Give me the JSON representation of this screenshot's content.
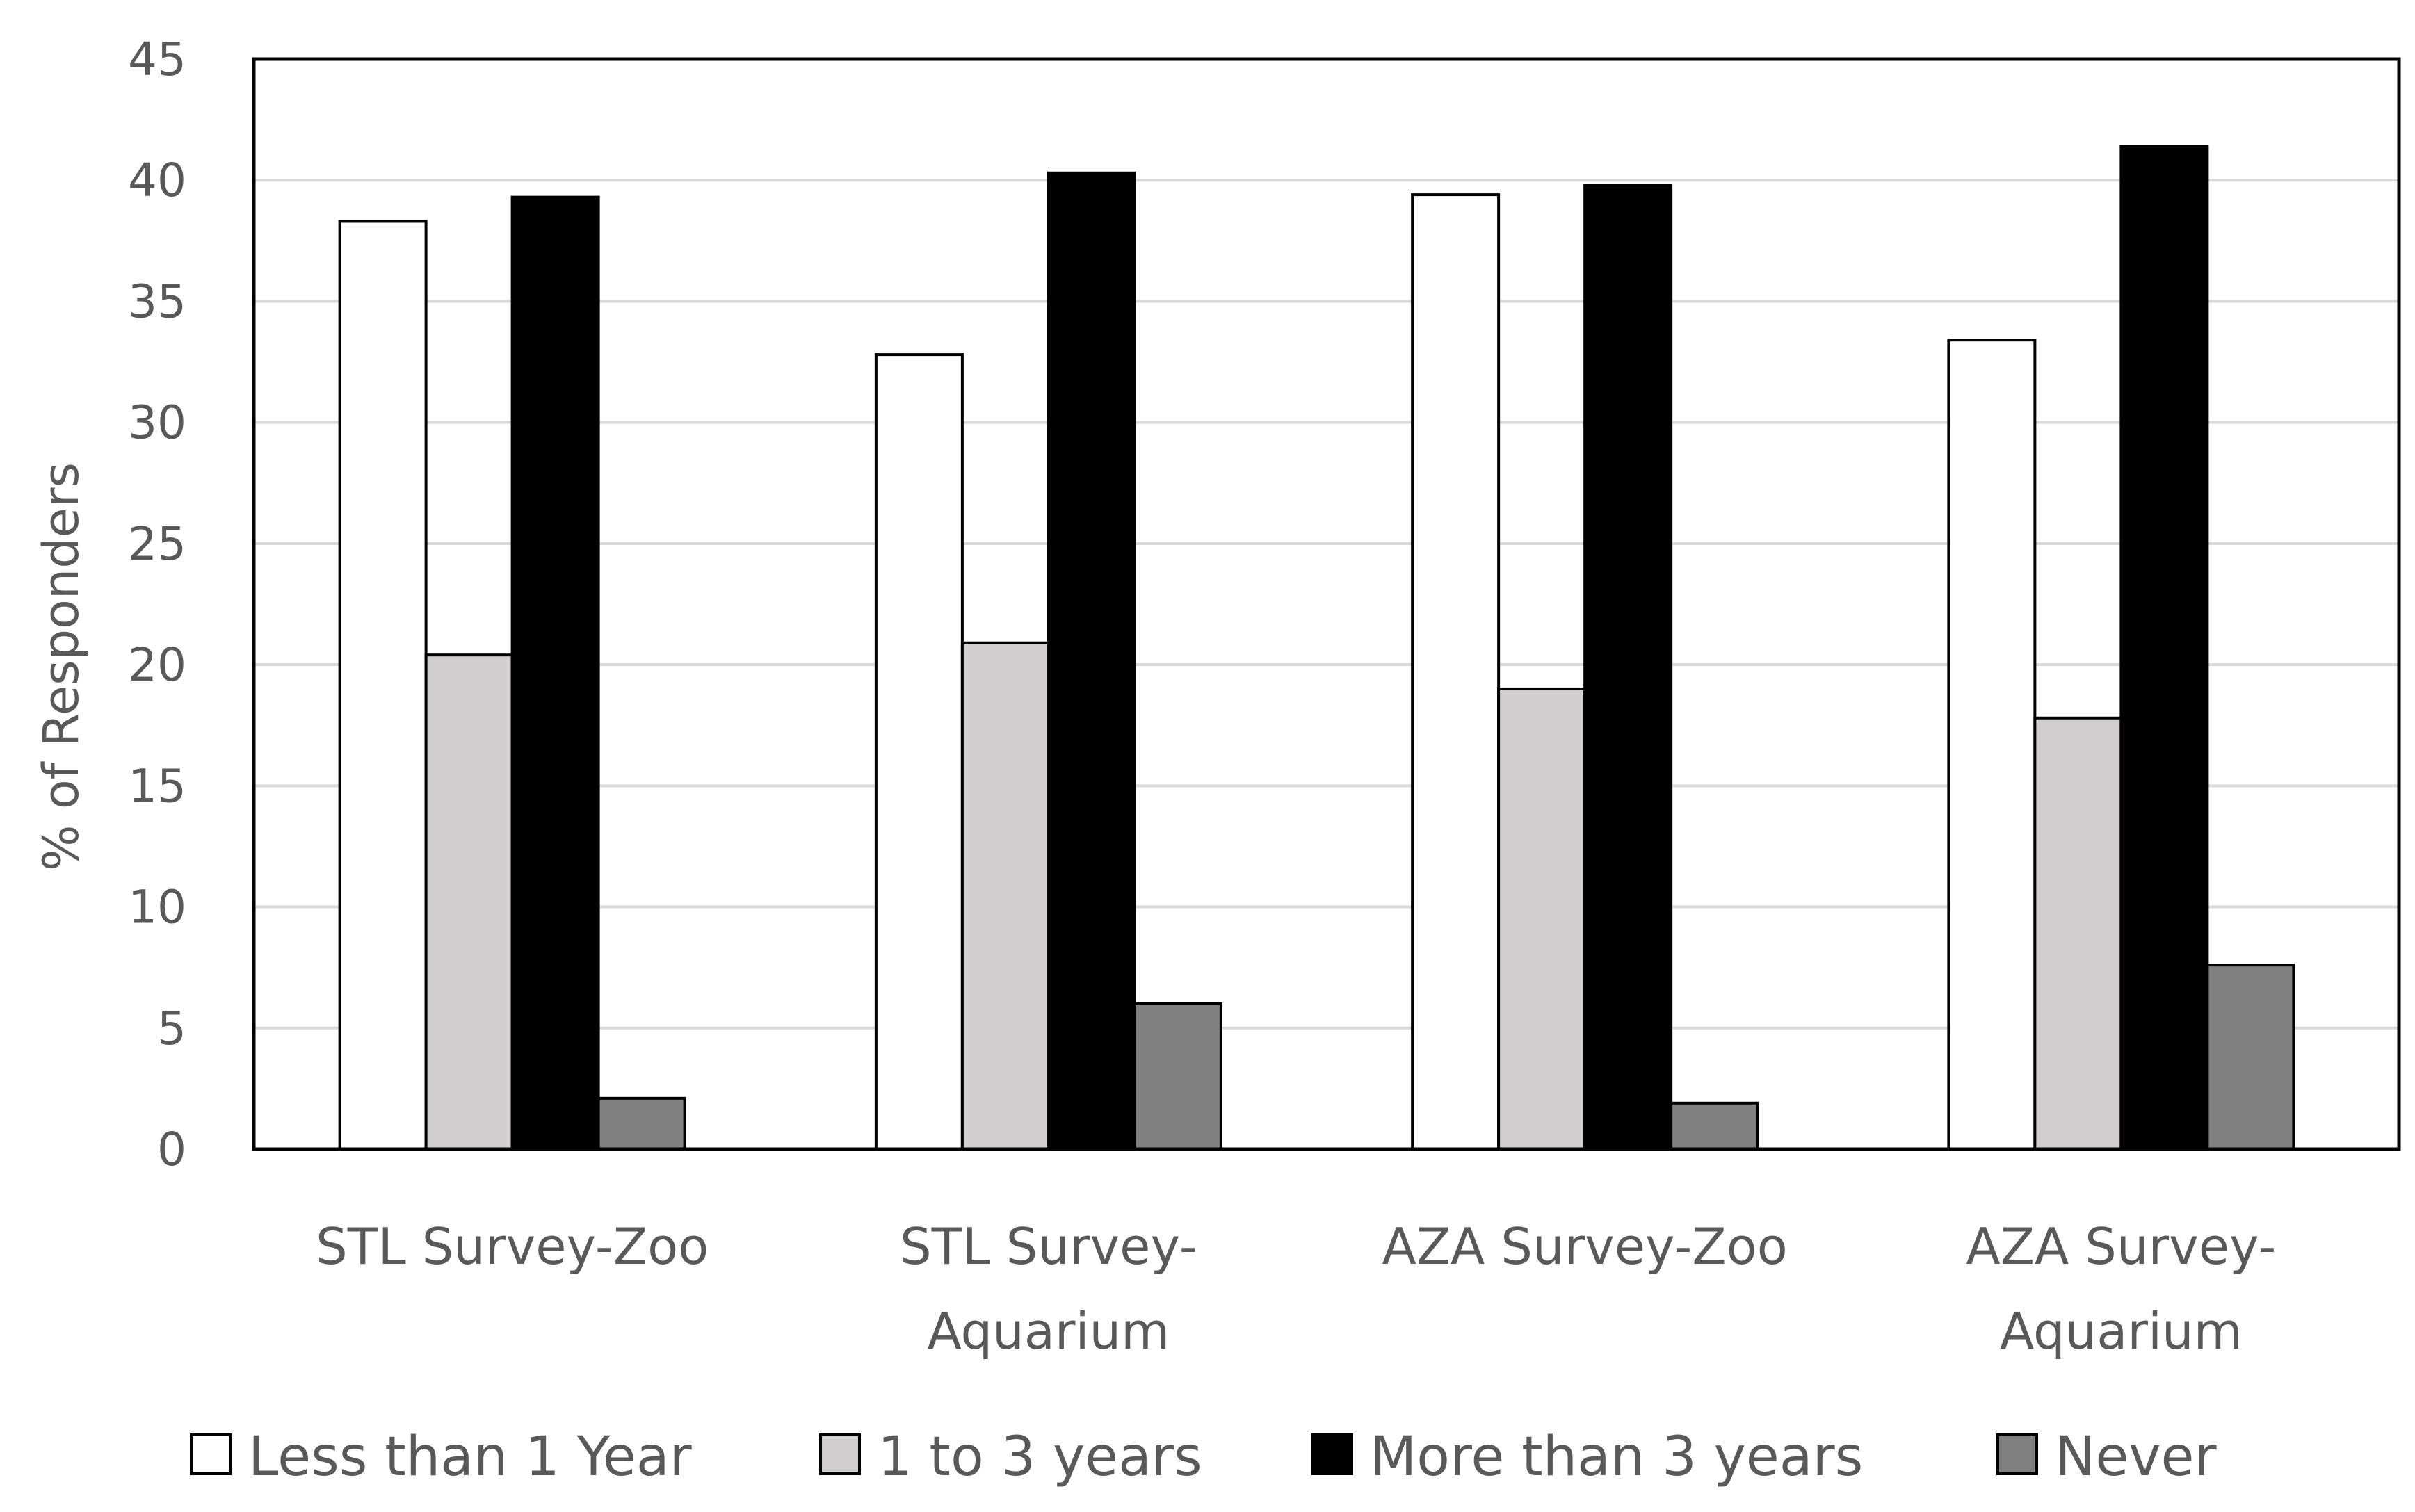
{
  "chart_data": {
    "type": "bar",
    "title": "",
    "xlabel": "",
    "ylabel": "% of Responders",
    "ylim": [
      0,
      45
    ],
    "ytick_step": 5,
    "grid": true,
    "legend_position": "bottom",
    "categories": [
      [
        "STL Survey-Zoo"
      ],
      [
        "STL Survey-",
        "Aquarium"
      ],
      [
        "AZA Survey-Zoo"
      ],
      [
        "AZA Survey-",
        "Aquarium"
      ]
    ],
    "series": [
      {
        "name": "Less than 1 Year",
        "color": "#ffffff",
        "values": [
          38.3,
          32.8,
          39.4,
          33.4
        ]
      },
      {
        "name": "1 to 3 years",
        "color": "#d0cece",
        "values": [
          20.4,
          20.9,
          19.0,
          17.8
        ]
      },
      {
        "name": "More than 3 years",
        "color": "#000000",
        "values": [
          39.3,
          40.3,
          39.8,
          41.4
        ]
      },
      {
        "name": "Never",
        "color": "#808080",
        "values": [
          2.1,
          6.0,
          1.9,
          7.6
        ]
      }
    ]
  }
}
